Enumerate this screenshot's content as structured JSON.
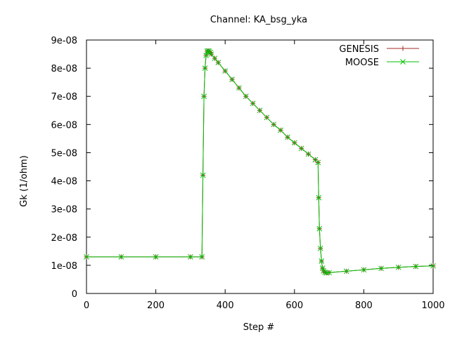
{
  "chart_data": {
    "type": "line",
    "title": "Channel: KA_bsg_yka",
    "xlabel": "Step #",
    "ylabel": "Gk (1/ohm)",
    "xlim": [
      0,
      1000
    ],
    "ylim": [
      0,
      9e-08
    ],
    "x_ticks": [
      0,
      200,
      400,
      600,
      800,
      1000
    ],
    "x_tick_labels": [
      "0",
      "200",
      "400",
      "600",
      "800",
      "1000"
    ],
    "y_ticks": [
      0,
      1e-08,
      2e-08,
      3e-08,
      4e-08,
      5e-08,
      6e-08,
      7e-08,
      8e-08,
      9e-08
    ],
    "y_tick_labels": [
      "0",
      "1e-08",
      "2e-08",
      "3e-08",
      "4e-08",
      "5e-08",
      "6e-08",
      "7e-08",
      "8e-08",
      "9e-08"
    ],
    "grid": false,
    "legend_position": "top-right",
    "series": [
      {
        "name": "GENESIS",
        "color": "#a52a2a",
        "marker": "plus",
        "x": [
          0,
          100,
          200,
          300,
          333,
          336,
          339,
          342,
          345,
          348,
          351,
          354,
          357,
          360,
          370,
          380,
          400,
          420,
          440,
          460,
          480,
          500,
          520,
          540,
          560,
          580,
          600,
          620,
          640,
          660,
          668,
          670,
          672,
          675,
          678,
          681,
          684,
          688,
          692,
          700,
          750,
          800,
          850,
          900,
          950,
          1000
        ],
        "y": [
          1.3e-08,
          1.3e-08,
          1.3e-08,
          1.3e-08,
          1.3e-08,
          4.2e-08,
          7e-08,
          8e-08,
          8.45e-08,
          8.6e-08,
          8.62e-08,
          8.6e-08,
          8.56e-08,
          8.5e-08,
          8.35e-08,
          8.2e-08,
          7.9e-08,
          7.6e-08,
          7.3e-08,
          7e-08,
          6.75e-08,
          6.5e-08,
          6.25e-08,
          6e-08,
          5.8e-08,
          5.55e-08,
          5.35e-08,
          5.15e-08,
          4.95e-08,
          4.75e-08,
          4.65e-08,
          3.4e-08,
          2.3e-08,
          1.6e-08,
          1.15e-08,
          9e-09,
          8e-09,
          7.5e-09,
          7.3e-09,
          7.4e-09,
          7.9e-09,
          8.4e-09,
          8.9e-09,
          9.3e-09,
          9.6e-09,
          9.8e-09
        ]
      },
      {
        "name": "MOOSE",
        "color": "#00c000",
        "marker": "cross",
        "x": [
          0,
          100,
          200,
          300,
          333,
          336,
          339,
          342,
          345,
          348,
          351,
          354,
          357,
          360,
          370,
          380,
          400,
          420,
          440,
          460,
          480,
          500,
          520,
          540,
          560,
          580,
          600,
          620,
          640,
          660,
          668,
          670,
          672,
          675,
          678,
          681,
          684,
          688,
          692,
          700,
          750,
          800,
          850,
          900,
          950,
          1000
        ],
        "y": [
          1.3e-08,
          1.3e-08,
          1.3e-08,
          1.3e-08,
          1.3e-08,
          4.2e-08,
          7e-08,
          8e-08,
          8.45e-08,
          8.6e-08,
          8.62e-08,
          8.6e-08,
          8.56e-08,
          8.5e-08,
          8.35e-08,
          8.2e-08,
          7.9e-08,
          7.6e-08,
          7.3e-08,
          7e-08,
          6.75e-08,
          6.5e-08,
          6.25e-08,
          6e-08,
          5.8e-08,
          5.55e-08,
          5.35e-08,
          5.15e-08,
          4.95e-08,
          4.75e-08,
          4.65e-08,
          3.4e-08,
          2.3e-08,
          1.6e-08,
          1.15e-08,
          9e-09,
          8e-09,
          7.5e-09,
          7.3e-09,
          7.4e-09,
          7.9e-09,
          8.4e-09,
          8.9e-09,
          9.3e-09,
          9.6e-09,
          9.8e-09
        ]
      }
    ]
  }
}
